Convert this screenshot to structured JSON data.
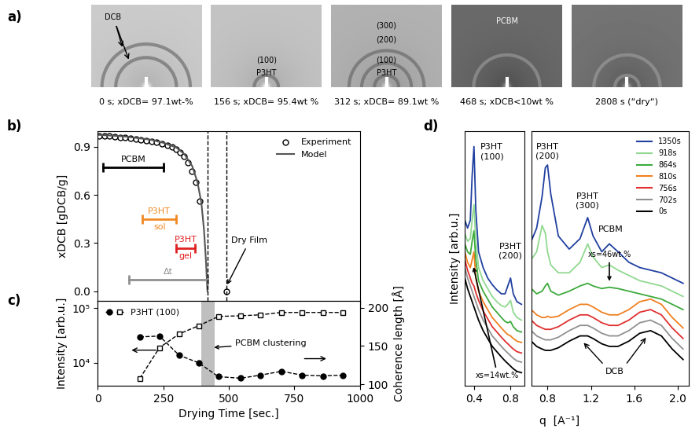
{
  "panel_labels": [
    "a)",
    "b)",
    "c)",
    "d)"
  ],
  "panel_a": {
    "images": [
      {
        "caption": "0 s; xDCB= 97.1wt-%",
        "labels": [
          "DCB"
        ]
      },
      {
        "caption": "156 s; xDCB= 95.4wt %",
        "labels": [
          "(100)",
          "P3HT"
        ]
      },
      {
        "caption": "312 s; xDCB= 89.1wt %",
        "labels": [
          "(300)",
          "(200)",
          "(100)",
          "P3HT"
        ]
      },
      {
        "caption": "468 s; xDCB<10wt %",
        "labels": [
          "PCBM"
        ]
      },
      {
        "caption": "2808 s (“dry“)",
        "labels": []
      }
    ]
  },
  "chart_data": [
    {
      "type": "line",
      "y_label": "xDCB [gDCB/g]",
      "xlim": [
        0,
        1000
      ],
      "ylim": [
        -0.06,
        1.0
      ],
      "xticks": [
        0,
        250,
        500,
        750,
        1000
      ],
      "yticks": [
        0.0,
        0.3,
        0.6,
        0.9
      ],
      "tick_labels": "y",
      "legend": "upper right",
      "series": [
        {
          "name": "Experiment",
          "type": "scatter",
          "marker": "circle_open",
          "line_style": "none",
          "color": "#000000",
          "x": [
            5,
            25,
            45,
            65,
            85,
            105,
            125,
            145,
            165,
            185,
            205,
            225,
            245,
            265,
            285,
            300,
            315,
            330,
            345,
            360,
            375,
            390,
            490
          ],
          "values": [
            0.97,
            0.97,
            0.97,
            0.965,
            0.96,
            0.96,
            0.955,
            0.95,
            0.945,
            0.94,
            0.935,
            0.93,
            0.92,
            0.91,
            0.9,
            0.885,
            0.865,
            0.84,
            0.8,
            0.75,
            0.68,
            0.56,
            0.0
          ]
        },
        {
          "name": "Model",
          "type": "line",
          "marker": "none",
          "line_style": "solid",
          "color": "#555555",
          "x": [
            0,
            100,
            200,
            250,
            300,
            330,
            360,
            380,
            395,
            405,
            412,
            418
          ],
          "values": [
            0.975,
            0.965,
            0.945,
            0.925,
            0.895,
            0.855,
            0.78,
            0.68,
            0.55,
            0.38,
            0.2,
            0.0
          ]
        }
      ],
      "ranges": [
        {
          "from": 20,
          "to": 250,
          "color": "#000000",
          "label_above": "PCBM"
        },
        {
          "from": 170,
          "to": 300,
          "color": "#f08a24",
          "label_above": "P3HT",
          "label_below": "sol"
        },
        {
          "from": 300,
          "to": 370,
          "color": "#e02020",
          "label_above": "P3HT",
          "label_below": "gel"
        },
        {
          "from": 120,
          "to": 418,
          "color": "#909090",
          "label_above": "Δt"
        }
      ],
      "vlines": [
        418,
        490
      ],
      "annotations": [
        {
          "text": "Dry Film",
          "x": 490,
          "y": 0.0
        }
      ]
    },
    {
      "type": "line",
      "x_label": "Drying Time [sec.]",
      "y_label": "Intensity [arb.u.]",
      "y2_label": "Coherence length [Å]",
      "log": "y",
      "xlim": [
        0,
        1000
      ],
      "xticks": [
        0,
        250,
        500,
        750,
        1000
      ],
      "ylim": [
        3800,
        137000
      ],
      "yticks": [
        {
          "value": 10000,
          "label": "10⁴"
        },
        {
          "value": 100000,
          "label": "10⁵"
        }
      ],
      "y2lim": [
        98,
        209
      ],
      "y2ticks": [
        100,
        150,
        200
      ],
      "legend": "upper left",
      "legend_label": "P3HT (100)",
      "x": [
        160,
        235,
        310,
        385,
        460,
        545,
        620,
        700,
        780,
        860,
        935
      ],
      "series": [
        {
          "axis": "y",
          "marker": "square_open",
          "line_style": "dashed",
          "color": "#000000",
          "values": [
            5200,
            19000,
            34000,
            48000,
            71000,
            73000,
            76000,
            84000,
            84000,
            84000,
            84000
          ]
        },
        {
          "axis": "y2",
          "marker": "circle_filled",
          "line_style": "dashed",
          "color": "#000000",
          "values": [
            162,
            163,
            138,
            128,
            110,
            108,
            112,
            117,
            112,
            111,
            112
          ]
        }
      ],
      "band": {
        "from": 395,
        "to": 445,
        "label": "PCBM clustering"
      }
    },
    {
      "type": "line",
      "y_label": "Intensity [arb.u.]",
      "xlim": [
        0.3,
        0.95
      ],
      "xticks": [
        0.4,
        0.8
      ],
      "ylim": [
        0.5,
        10.2
      ],
      "yticks": [],
      "tick_labels": "x",
      "x": [
        0.3,
        0.33,
        0.36,
        0.38,
        0.4,
        0.42,
        0.45,
        0.5,
        0.55,
        0.6,
        0.65,
        0.7,
        0.74,
        0.77,
        0.8,
        0.83,
        0.87,
        0.92
      ],
      "annotations": [
        "P3HT\n(100)",
        "P3HT\n(200)",
        "xs=14wt.%"
      ],
      "series": [
        {
          "name": "1350s",
          "color": "#2040a0",
          "values": [
            6.8,
            6.5,
            6.8,
            8.5,
            9.6,
            7.2,
            5.6,
            5.0,
            4.6,
            4.35,
            4.15,
            4.0,
            4.0,
            4.3,
            4.6,
            4.0,
            3.7,
            3.6
          ]
        },
        {
          "name": "918s",
          "color": "#90d890",
          "values": [
            6.3,
            6.0,
            6.1,
            6.8,
            7.4,
            6.0,
            5.0,
            4.5,
            4.2,
            3.9,
            3.7,
            3.55,
            3.5,
            3.6,
            3.75,
            3.3,
            3.1,
            3.0
          ]
        },
        {
          "name": "864s",
          "color": "#3caa3c",
          "values": [
            5.9,
            5.6,
            5.5,
            6.0,
            6.4,
            5.3,
            4.5,
            4.1,
            3.8,
            3.5,
            3.3,
            3.1,
            2.95,
            2.9,
            2.95,
            2.75,
            2.6,
            2.55
          ]
        },
        {
          "name": "810s",
          "color": "#f08020",
          "values": [
            5.6,
            5.2,
            5.0,
            5.3,
            5.6,
            4.6,
            4.1,
            3.7,
            3.4,
            3.1,
            2.9,
            2.7,
            2.55,
            2.45,
            2.4,
            2.3,
            2.2,
            2.15
          ]
        },
        {
          "name": "756s",
          "color": "#e03030",
          "values": [
            5.3,
            4.9,
            4.6,
            4.4,
            4.3,
            4.05,
            3.75,
            3.35,
            3.05,
            2.75,
            2.55,
            2.35,
            2.2,
            2.1,
            2.0,
            1.9,
            1.8,
            1.75
          ]
        },
        {
          "name": "702s",
          "color": "#909090",
          "values": [
            5.0,
            4.6,
            4.3,
            4.1,
            3.9,
            3.7,
            3.4,
            3.0,
            2.7,
            2.4,
            2.2,
            2.0,
            1.85,
            1.75,
            1.65,
            1.55,
            1.45,
            1.4
          ]
        },
        {
          "name": "0s",
          "color": "#000000",
          "values": [
            4.6,
            4.2,
            3.9,
            3.7,
            3.5,
            3.3,
            3.0,
            2.6,
            2.3,
            2.0,
            1.8,
            1.6,
            1.45,
            1.35,
            1.25,
            1.15,
            1.05,
            1.0
          ]
        }
      ]
    },
    {
      "type": "line",
      "x_label": "q  [A⁻¹]",
      "xlim": [
        0.65,
        2.1
      ],
      "xticks": [
        0.8,
        1.2,
        1.6,
        2.0
      ],
      "ylim": [
        0.5,
        10.2
      ],
      "yticks": [],
      "tick_labels": "x",
      "legend": "upper right",
      "x": [
        0.65,
        0.7,
        0.75,
        0.78,
        0.8,
        0.83,
        0.9,
        1.0,
        1.1,
        1.17,
        1.22,
        1.3,
        1.37,
        1.45,
        1.55,
        1.65,
        1.75,
        1.85,
        1.95,
        2.05
      ],
      "annotations": [
        "P3HT\n(200)",
        "P3HT\n(300)",
        "PCBM",
        "xs=46wt.%",
        "DCB"
      ],
      "series": [
        {
          "name": "1350s",
          "color": "#2040a0",
          "values": [
            6.0,
            6.5,
            7.7,
            8.8,
            8.9,
            7.8,
            6.2,
            5.7,
            6.1,
            6.9,
            6.2,
            5.6,
            5.9,
            5.6,
            5.2,
            5.0,
            4.9,
            4.8,
            4.6,
            4.4
          ]
        },
        {
          "name": "918s",
          "color": "#90d890",
          "values": [
            5.3,
            5.6,
            6.6,
            6.3,
            5.6,
            5.1,
            4.8,
            4.8,
            5.2,
            5.9,
            5.4,
            5.0,
            5.1,
            4.9,
            4.7,
            4.5,
            4.4,
            4.3,
            4.1,
            3.9
          ]
        },
        {
          "name": "864s",
          "color": "#3caa3c",
          "values": [
            4.2,
            4.0,
            4.1,
            4.3,
            4.4,
            4.1,
            3.95,
            4.1,
            4.3,
            4.4,
            4.3,
            4.2,
            4.25,
            4.2,
            4.1,
            4.0,
            3.9,
            3.8,
            3.6,
            3.4
          ]
        },
        {
          "name": "810s",
          "color": "#f08020",
          "values": [
            3.4,
            3.2,
            3.1,
            3.1,
            3.15,
            3.1,
            3.15,
            3.4,
            3.6,
            3.6,
            3.5,
            3.3,
            3.2,
            3.2,
            3.4,
            3.7,
            3.8,
            3.6,
            3.1,
            2.7
          ]
        },
        {
          "name": "756s",
          "color": "#e03030",
          "values": [
            3.0,
            2.8,
            2.7,
            2.65,
            2.65,
            2.65,
            2.75,
            3.0,
            3.2,
            3.2,
            3.1,
            2.9,
            2.8,
            2.8,
            3.0,
            3.3,
            3.4,
            3.2,
            2.7,
            2.3
          ]
        },
        {
          "name": "702s",
          "color": "#909090",
          "values": [
            2.6,
            2.4,
            2.3,
            2.25,
            2.25,
            2.25,
            2.35,
            2.6,
            2.8,
            2.8,
            2.7,
            2.5,
            2.4,
            2.4,
            2.6,
            2.9,
            3.0,
            2.8,
            2.3,
            1.9
          ]
        },
        {
          "name": "0s",
          "color": "#000000",
          "values": [
            2.2,
            2.0,
            1.9,
            1.85,
            1.85,
            1.85,
            1.95,
            2.2,
            2.4,
            2.4,
            2.3,
            2.1,
            2.0,
            2.0,
            2.2,
            2.5,
            2.6,
            2.4,
            1.9,
            1.5
          ]
        }
      ]
    }
  ]
}
